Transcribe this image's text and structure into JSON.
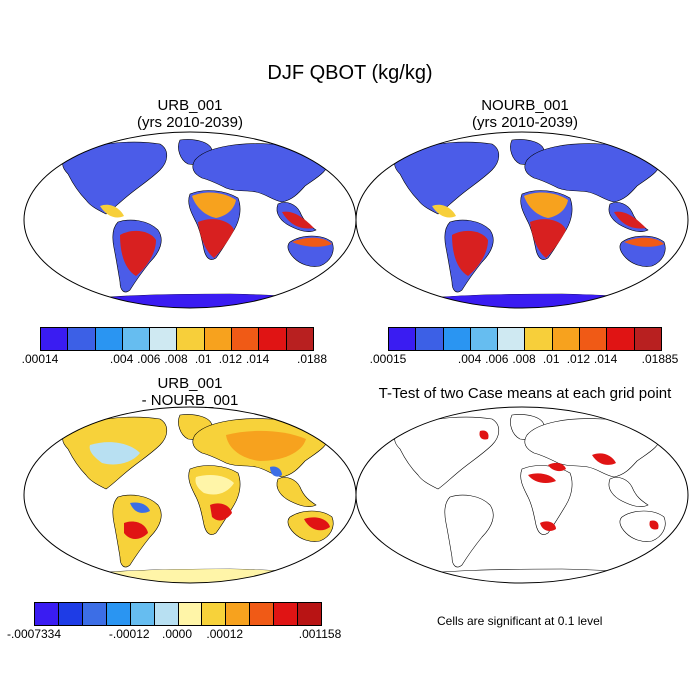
{
  "main_title": "DJF QBOT (kg/kg)",
  "panels": {
    "urb": {
      "title1": "URB_001",
      "title2": "(yrs 2010-2039)"
    },
    "nourb": {
      "title1": "NOURB_001",
      "title2": "(yrs 2010-2039)"
    },
    "diff": {
      "title1": "URB_001",
      "title2": "- NOURB_001"
    },
    "ttest": {
      "title1": "T-Test of two Case means at each grid point"
    }
  },
  "colorbars": {
    "urb": {
      "colors": [
        "#3a1cf2",
        "#3c60e6",
        "#2a95f2",
        "#66bdf0",
        "#cfe9f2",
        "#f7cf3a",
        "#f7a21e",
        "#f05a16",
        "#e01414",
        "#b82020"
      ],
      "labels": [
        ".00014",
        ".004",
        ".006",
        ".008",
        ".01",
        ".012",
        ".014",
        ".0188"
      ]
    },
    "nourb": {
      "colors": [
        "#3a1cf2",
        "#3c60e6",
        "#2a95f2",
        "#66bdf0",
        "#cfe9f2",
        "#f7cf3a",
        "#f7a21e",
        "#f05a16",
        "#e01414",
        "#b82020"
      ],
      "labels": [
        ".00015",
        ".004",
        ".006",
        ".008",
        ".01",
        ".012",
        ".014",
        ".01885"
      ]
    },
    "diff": {
      "colors": [
        "#3a1cf2",
        "#1e3ce6",
        "#3c6ee6",
        "#2a95f2",
        "#66bdf0",
        "#b8e0f2",
        "#fff5a8",
        "#f7d23a",
        "#f7a21e",
        "#f05a16",
        "#e01414",
        "#b81414"
      ],
      "labels": [
        "-.0007334",
        "-.00012",
        ".0000",
        ".00012",
        ".001158"
      ]
    }
  },
  "note": "Cells are significant at 0.1 level"
}
